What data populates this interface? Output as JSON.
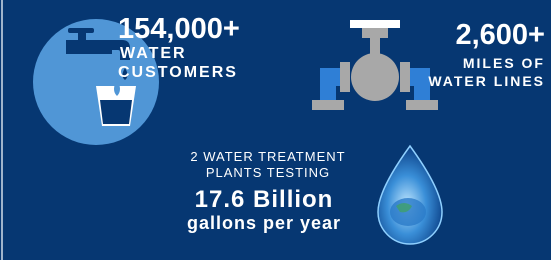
{
  "stats": [
    {
      "value": "154,000+",
      "label_lines": [
        "WATER",
        "CUSTOMERS"
      ]
    },
    {
      "value": "2,600+",
      "label_lines": [
        "MILES OF",
        "WATER LINES"
      ]
    },
    {
      "intro_lines": [
        "2 WATER TREATMENT",
        "PLANTS TESTING"
      ],
      "value": "17.6 Billion",
      "unit": "gallons per year"
    }
  ]
}
